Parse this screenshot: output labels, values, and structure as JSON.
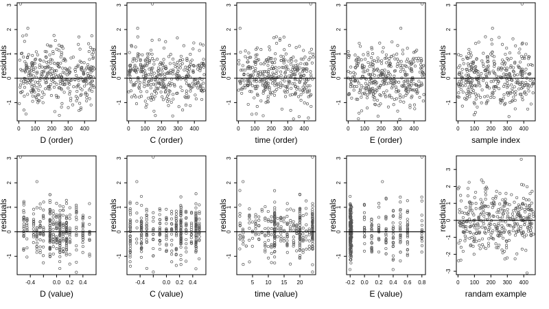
{
  "colors": {
    "points": "#555555",
    "axis": "#000000",
    "background": "#ffffff"
  },
  "chart_data": [
    {
      "type": "scatter",
      "xlabel": "D (order)",
      "ylabel": "residuals",
      "xlim": [
        -10,
        470
      ],
      "ylim": [
        -1.75,
        3.1
      ],
      "xticks": [
        0,
        100,
        200,
        300,
        400
      ],
      "xtick_labels": [
        "0",
        "100",
        "200",
        "300",
        "400"
      ],
      "yticks": [
        -1,
        0,
        1,
        2,
        3
      ],
      "ytick_labels": [
        "-1",
        "0",
        "1",
        "2",
        "3"
      ],
      "reference_line_y": 0,
      "points_kind": "order",
      "highlight": [
        [
          10,
          3.05
        ],
        [
          55,
          2.05
        ]
      ]
    },
    {
      "type": "scatter",
      "xlabel": "C (order)",
      "ylabel": "residuals",
      "xlim": [
        -10,
        470
      ],
      "ylim": [
        -1.75,
        3.1
      ],
      "xticks": [
        0,
        100,
        200,
        300,
        400
      ],
      "xtick_labels": [
        "0",
        "100",
        "200",
        "300",
        "400"
      ],
      "yticks": [
        -1,
        0,
        1,
        2,
        3
      ],
      "ytick_labels": [
        "-1",
        "0",
        "1",
        "2",
        "3"
      ],
      "reference_line_y": 0,
      "points_kind": "order",
      "highlight": [
        [
          145,
          3.05
        ],
        [
          55,
          2.05
        ]
      ]
    },
    {
      "type": "scatter",
      "xlabel": "time (order)",
      "ylabel": "residuals",
      "xlim": [
        -10,
        470
      ],
      "ylim": [
        -1.75,
        3.1
      ],
      "xticks": [
        0,
        100,
        200,
        300,
        400
      ],
      "xtick_labels": [
        "0",
        "100",
        "200",
        "300",
        "400"
      ],
      "yticks": [
        -1,
        0,
        1,
        2,
        3
      ],
      "ytick_labels": [
        "-1",
        "0",
        "1",
        "2",
        "3"
      ],
      "reference_line_y": 0,
      "points_kind": "order",
      "highlight": [
        [
          440,
          3.05
        ],
        [
          10,
          2.05
        ]
      ]
    },
    {
      "type": "scatter",
      "xlabel": "E (order)",
      "ylabel": "residuals",
      "xlim": [
        -10,
        470
      ],
      "ylim": [
        -1.75,
        3.1
      ],
      "xticks": [
        0,
        100,
        200,
        300,
        400
      ],
      "xtick_labels": [
        "0",
        "100",
        "200",
        "300",
        "400"
      ],
      "yticks": [
        -1,
        0,
        1,
        2,
        3
      ],
      "ytick_labels": [
        "-1",
        "0",
        "1",
        "2",
        "3"
      ],
      "reference_line_y": 0,
      "points_kind": "order",
      "highlight": [
        [
          450,
          3.05
        ],
        [
          320,
          2.05
        ]
      ]
    },
    {
      "type": "scatter",
      "xlabel": "sample index",
      "ylabel": "residuals",
      "xlim": [
        -10,
        470
      ],
      "ylim": [
        -1.75,
        3.1
      ],
      "xticks": [
        0,
        100,
        200,
        300,
        400
      ],
      "xtick_labels": [
        "0",
        "100",
        "200",
        "300",
        "400"
      ],
      "yticks": [
        -1,
        0,
        1,
        2,
        3
      ],
      "ytick_labels": [
        "-1",
        "0",
        "1",
        "2",
        "3"
      ],
      "reference_line_y": 0,
      "points_kind": "order",
      "highlight": [
        [
          390,
          3.05
        ],
        [
          210,
          2.05
        ]
      ]
    },
    {
      "type": "scatter",
      "xlabel": "D (value)",
      "ylabel": "residuals",
      "xlim": [
        -0.6,
        0.6
      ],
      "ylim": [
        -1.75,
        3.1
      ],
      "xticks": [
        -0.4,
        -0.2,
        0,
        0.2,
        0.4
      ],
      "xtick_labels": [
        "-0.4",
        "",
        "0.0",
        "0.2",
        "0.4"
      ],
      "yticks": [
        -1,
        0,
        1,
        2,
        3
      ],
      "ytick_labels": [
        "-1",
        "0",
        "1",
        "2",
        "3"
      ],
      "reference_line_y": 0,
      "points_kind": "value",
      "x_values": [
        -0.5,
        -0.45,
        -0.35,
        -0.3,
        -0.25,
        -0.2,
        -0.1,
        -0.05,
        0.0,
        0.05,
        0.1,
        0.15,
        0.2,
        0.3,
        0.4,
        0.5
      ],
      "dense_x": [
        -0.1,
        0.05,
        0.15
      ],
      "highlight": [
        [
          -0.55,
          3.05
        ],
        [
          -0.3,
          2.05
        ]
      ]
    },
    {
      "type": "scatter",
      "xlabel": "C (value)",
      "ylabel": "residuals",
      "xlim": [
        -0.6,
        0.6
      ],
      "ylim": [
        -1.75,
        3.1
      ],
      "xticks": [
        -0.4,
        -0.2,
        0,
        0.2,
        0.4
      ],
      "xtick_labels": [
        "-0.4",
        "",
        "0.0",
        "0.2",
        "0.4"
      ],
      "yticks": [
        -1,
        0,
        1,
        2,
        3
      ],
      "ytick_labels": [
        "-1",
        "0",
        "1",
        "2",
        "3"
      ],
      "reference_line_y": 0,
      "points_kind": "value",
      "x_values": [
        -0.55,
        -0.45,
        -0.38,
        -0.3,
        -0.2,
        -0.1,
        0.0,
        0.08,
        0.15,
        0.22,
        0.3,
        0.38,
        0.45,
        0.5
      ],
      "dense_x": [
        -0.55,
        -0.38,
        0.22,
        0.45
      ],
      "highlight": [
        [
          -0.2,
          3.05
        ],
        [
          -0.45,
          2.05
        ]
      ]
    },
    {
      "type": "scatter",
      "xlabel": "time (value)",
      "ylabel": "residuals",
      "xlim": [
        0,
        25
      ],
      "ylim": [
        -1.75,
        3.1
      ],
      "xticks": [
        5,
        10,
        15,
        20
      ],
      "xtick_labels": [
        "5",
        "10",
        "15",
        "20"
      ],
      "yticks": [
        -1,
        0,
        1,
        2,
        3
      ],
      "ytick_labels": [
        "-1",
        "0",
        "1",
        "2",
        "3"
      ],
      "reference_line_y": 0,
      "points_kind": "value",
      "x_values": [
        1,
        2,
        3,
        4,
        5,
        6,
        7,
        8,
        9,
        10,
        11,
        12,
        13,
        14,
        15,
        16,
        17,
        18,
        19,
        20,
        21,
        22,
        23,
        24
      ],
      "dense_x": [
        12,
        20,
        24
      ],
      "highlight": [
        [
          24,
          3.05
        ],
        [
          2,
          2.05
        ]
      ]
    },
    {
      "type": "scatter",
      "xlabel": "E (value)",
      "ylabel": "residuals",
      "xlim": [
        -0.25,
        0.85
      ],
      "ylim": [
        -1.75,
        3.1
      ],
      "xticks": [
        -0.2,
        0,
        0.2,
        0.4,
        0.6,
        0.8
      ],
      "xtick_labels": [
        "-0.2",
        "0.0",
        "0.2",
        "0.4",
        "0.6",
        "0.8"
      ],
      "yticks": [
        -1,
        0,
        1,
        2,
        3
      ],
      "ytick_labels": [
        "-1",
        "0",
        "1",
        "2",
        "3"
      ],
      "reference_line_y": 0,
      "points_kind": "value",
      "x_values": [
        -0.2,
        -0.19,
        -0.18,
        0.0,
        0.1,
        0.2,
        0.3,
        0.4,
        0.5,
        0.6,
        0.8
      ],
      "dense_x": [
        -0.2,
        -0.19
      ],
      "highlight": [
        [
          0.8,
          3.05
        ],
        [
          0.25,
          2.05
        ]
      ]
    },
    {
      "type": "scatter",
      "xlabel": "randam example",
      "ylabel": "residuals",
      "xlim": [
        -10,
        470
      ],
      "ylim": [
        -3.2,
        3.8
      ],
      "xticks": [
        0,
        100,
        200,
        300,
        400
      ],
      "xtick_labels": [
        "0",
        "100",
        "200",
        "300",
        "400"
      ],
      "yticks": [
        -3,
        -2,
        -1,
        0,
        1,
        2,
        3
      ],
      "ytick_labels": [
        "-3",
        "-2",
        "-1",
        "0",
        "1",
        "2",
        "3"
      ],
      "reference_line_y": 0,
      "points_kind": "random",
      "highlight": [
        [
          385,
          3.6
        ],
        [
          420,
          -3.1
        ]
      ]
    }
  ]
}
